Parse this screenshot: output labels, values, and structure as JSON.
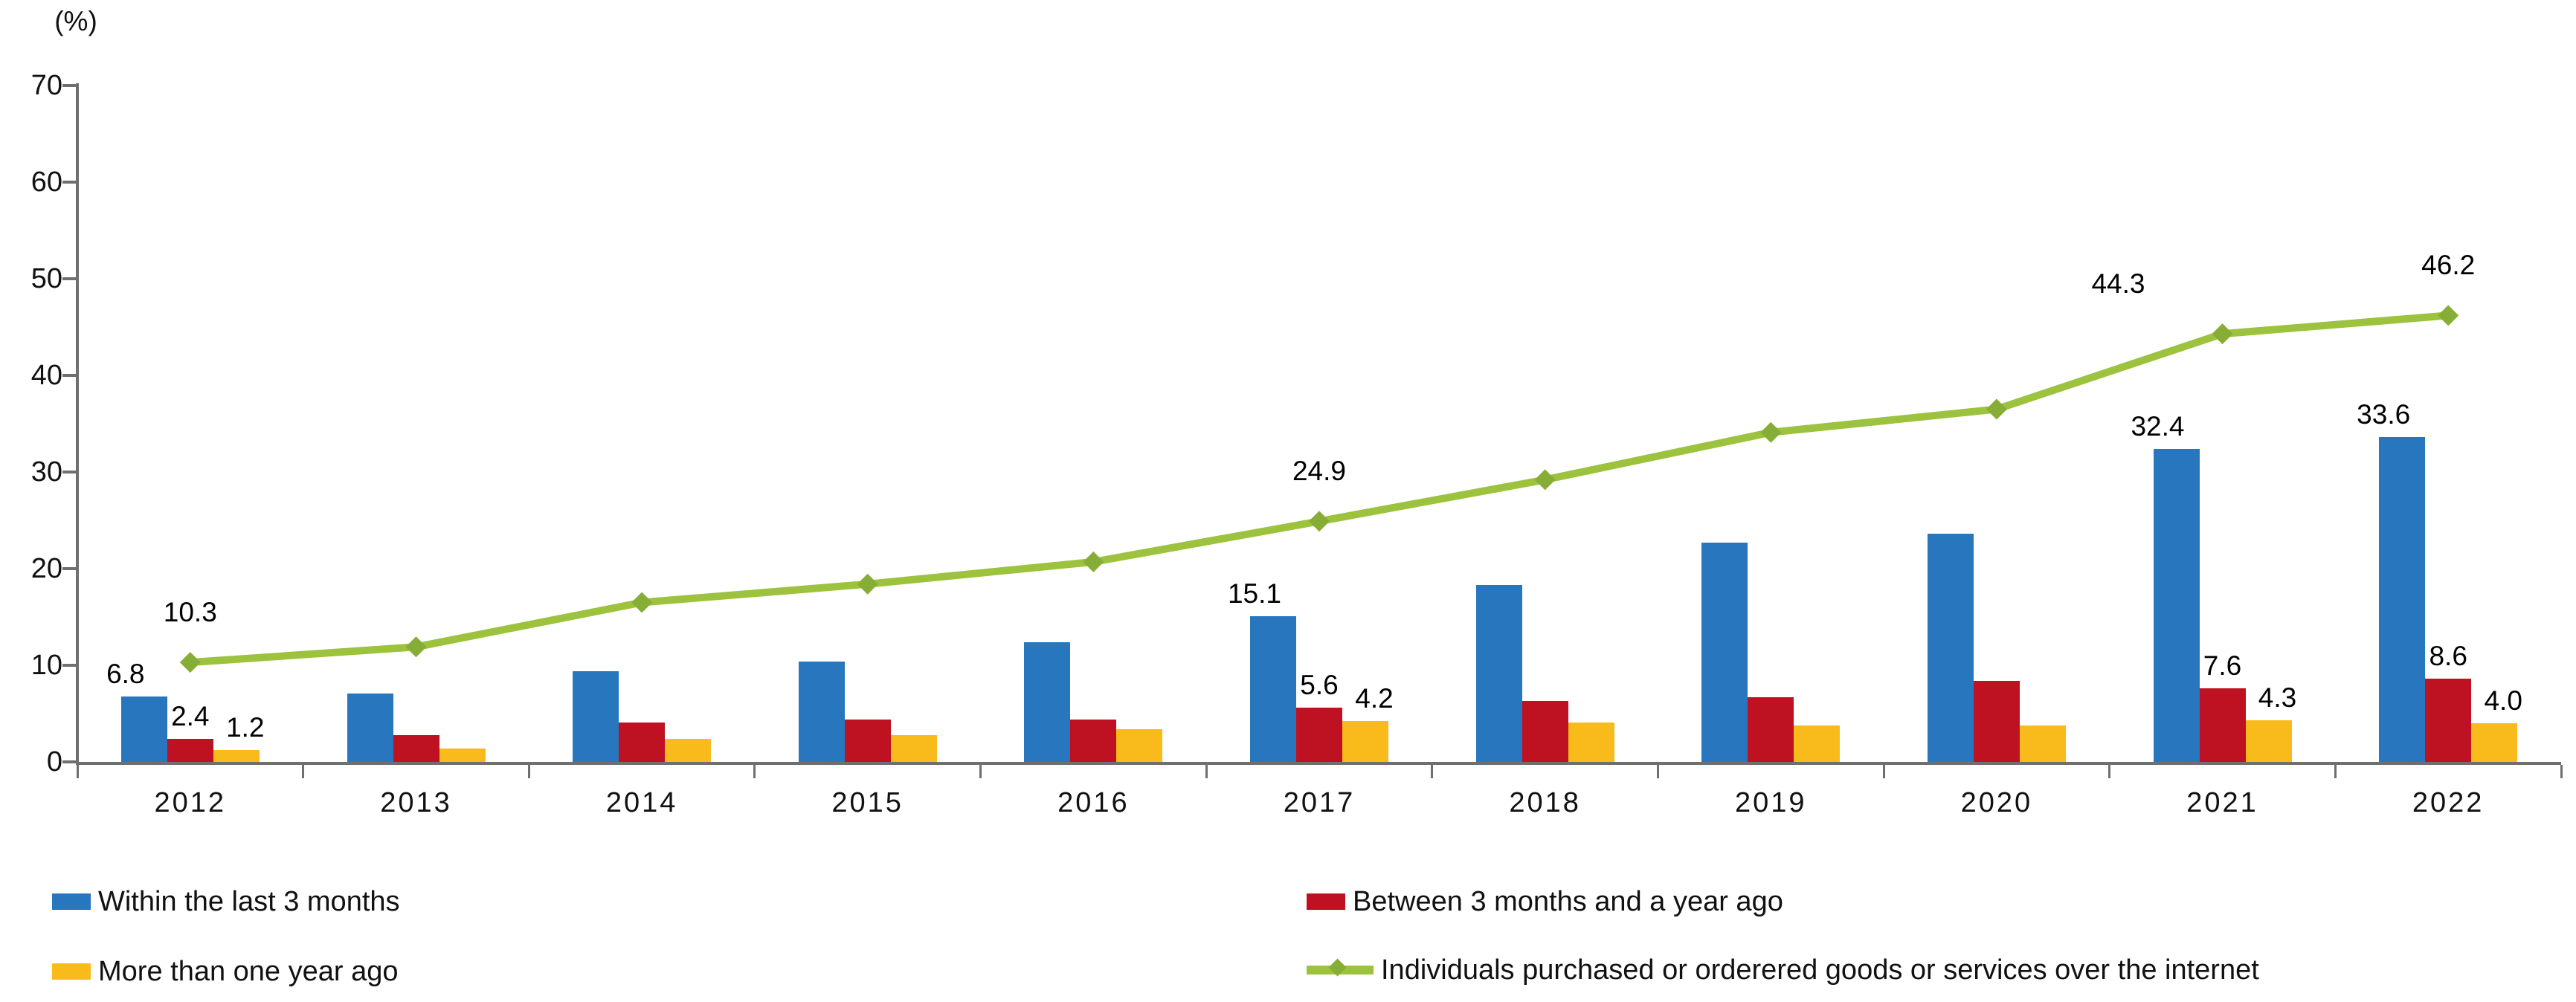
{
  "chart_data": {
    "type": "composed-bar-line",
    "title": "",
    "ylabel": "(%)",
    "xlabel": "",
    "ylim": [
      0,
      70
    ],
    "yticks": [
      0,
      10,
      20,
      30,
      40,
      50,
      60,
      70
    ],
    "grid": false,
    "legend_position": "bottom",
    "categories": [
      "2012",
      "2013",
      "2014",
      "2015",
      "2016",
      "2017",
      "2018",
      "2019",
      "2020",
      "2021",
      "2022"
    ],
    "series": [
      {
        "name": "Within the last 3 months",
        "type": "bar",
        "color": "#2776BE",
        "values": [
          6.8,
          7.1,
          9.4,
          10.4,
          12.4,
          15.1,
          18.3,
          22.7,
          23.6,
          32.4,
          33.6
        ],
        "point_labels": {
          "2012": "6.8",
          "2017": "15.1",
          "2021": "32.4",
          "2022": "33.6"
        }
      },
      {
        "name": "Between 3 months and a year ago",
        "type": "bar",
        "color": "#BE1222",
        "values": [
          2.4,
          2.8,
          4.1,
          4.4,
          4.4,
          5.6,
          6.3,
          6.7,
          8.4,
          7.6,
          8.6
        ],
        "point_labels": {
          "2012": "2.4",
          "2017": "5.6",
          "2021": "7.6",
          "2022": "8.6"
        }
      },
      {
        "name": "More than one year ago",
        "type": "bar",
        "color": "#F9BB1B",
        "values": [
          1.2,
          1.4,
          2.4,
          2.8,
          3.4,
          4.2,
          4.1,
          3.8,
          3.8,
          4.3,
          4.0
        ],
        "point_labels": {
          "2012": "1.2",
          "2017": "4.2",
          "2021": "4.3",
          "2022": "4.0"
        }
      },
      {
        "name": "Individuals purchased or orderered goods or services over the internet",
        "type": "line",
        "color": "#9CC23E",
        "marker_color": "#86AE36",
        "values": [
          10.3,
          11.9,
          16.5,
          18.4,
          20.7,
          24.9,
          29.2,
          34.1,
          36.5,
          44.3,
          46.2
        ],
        "point_labels": {
          "2012": "10.3",
          "2017": "24.9",
          "2021": "44.3",
          "2022": "46.2"
        }
      }
    ]
  },
  "legend": {
    "left_column": [
      {
        "series_index": 0,
        "label": "Within the last 3 months"
      },
      {
        "series_index": 2,
        "label": "More than one year ago"
      }
    ],
    "right_column": [
      {
        "series_index": 1,
        "label": "Between 3 months and a year ago"
      },
      {
        "series_index": 3,
        "label": "Individuals purchased or orderered goods or services over the internet"
      }
    ]
  }
}
